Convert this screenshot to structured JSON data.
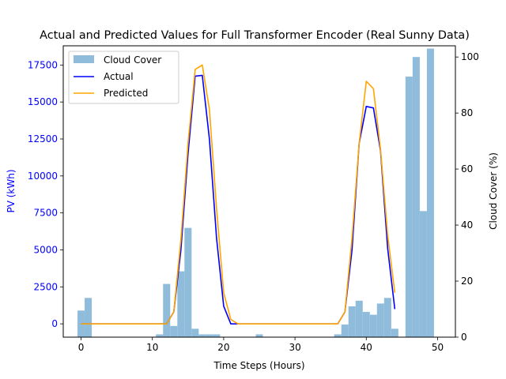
{
  "chart_data": {
    "type": "bar+line",
    "title": "Actual and Predicted Values for Full Transformer Encoder (Real Sunny Data)",
    "xlabel": "Time Steps (Hours)",
    "ylabel_left": "PV (kWh)",
    "ylabel_right": "Cloud Cover (%)",
    "xlim": [
      -2.5,
      52.5
    ],
    "ylim_left": [
      -900,
      18800
    ],
    "ylim_right": [
      0,
      104
    ],
    "x_ticks": [
      0,
      10,
      20,
      30,
      40,
      50
    ],
    "y_left_ticks": [
      0,
      2500,
      5000,
      7500,
      10000,
      12500,
      15000,
      17500
    ],
    "y_right_ticks": [
      0,
      20,
      40,
      60,
      80,
      100
    ],
    "grid": false,
    "legend_position": "upper-left",
    "colors": {
      "cloud_cover": "#8fbcdb",
      "actual": "#0000ff",
      "predicted": "#ffa500",
      "left_axis_text": "#0000ff",
      "axis": "#000000"
    },
    "cloud_cover": {
      "name": "Cloud Cover",
      "x": [
        0,
        1,
        2,
        3,
        4,
        5,
        6,
        7,
        8,
        9,
        10,
        11,
        12,
        13,
        14,
        15,
        16,
        17,
        18,
        19,
        20,
        21,
        22,
        23,
        24,
        25,
        26,
        27,
        28,
        29,
        30,
        31,
        32,
        33,
        34,
        35,
        36,
        37,
        38,
        39,
        40,
        41,
        42,
        43,
        44,
        45,
        46,
        47,
        48,
        49
      ],
      "values": [
        9.5,
        14,
        0,
        0,
        0,
        0,
        0,
        0,
        0,
        0,
        0,
        1,
        19,
        4,
        23.5,
        39,
        3,
        1,
        1,
        1,
        0,
        0,
        0,
        0,
        0,
        1,
        0,
        0,
        0,
        0,
        0,
        0,
        0,
        0,
        0,
        0,
        1,
        4.5,
        11,
        13,
        9,
        8,
        12,
        14,
        3,
        0,
        93,
        100,
        45,
        103
      ]
    },
    "series": [
      {
        "name": "Actual",
        "x": [
          0,
          1,
          2,
          3,
          4,
          5,
          6,
          7,
          8,
          9,
          10,
          11,
          12,
          13,
          14,
          15,
          16,
          17,
          18,
          19,
          20,
          21,
          22,
          23,
          24,
          25,
          26,
          27,
          28,
          29,
          30,
          31,
          32,
          33,
          34,
          35,
          36,
          37,
          38,
          39,
          40,
          41,
          42,
          43,
          44
        ],
        "values": [
          0,
          0,
          0,
          0,
          0,
          0,
          0,
          0,
          0,
          0,
          0,
          0,
          0,
          800,
          5000,
          11500,
          16750,
          16800,
          12500,
          5800,
          1200,
          0,
          0,
          0,
          0,
          0,
          0,
          0,
          0,
          0,
          0,
          0,
          0,
          0,
          0,
          0,
          0,
          800,
          5000,
          12200,
          14700,
          14600,
          11700,
          5100,
          1000
        ]
      },
      {
        "name": "Predicted",
        "x": [
          0,
          1,
          2,
          3,
          4,
          5,
          6,
          7,
          8,
          9,
          10,
          11,
          12,
          13,
          14,
          15,
          16,
          17,
          18,
          19,
          20,
          21,
          22,
          23,
          24,
          25,
          26,
          27,
          28,
          29,
          30,
          31,
          32,
          33,
          34,
          35,
          36,
          37,
          38,
          39,
          40,
          41,
          42,
          43,
          44
        ],
        "values": [
          0,
          0,
          0,
          0,
          0,
          0,
          0,
          0,
          0,
          0,
          0,
          0,
          0,
          800,
          5700,
          12200,
          17200,
          17500,
          14500,
          7800,
          2100,
          300,
          0,
          0,
          0,
          0,
          0,
          0,
          0,
          0,
          0,
          0,
          0,
          0,
          0,
          0,
          0,
          800,
          5800,
          12200,
          16400,
          15900,
          11800,
          6000,
          2100
        ]
      }
    ]
  }
}
